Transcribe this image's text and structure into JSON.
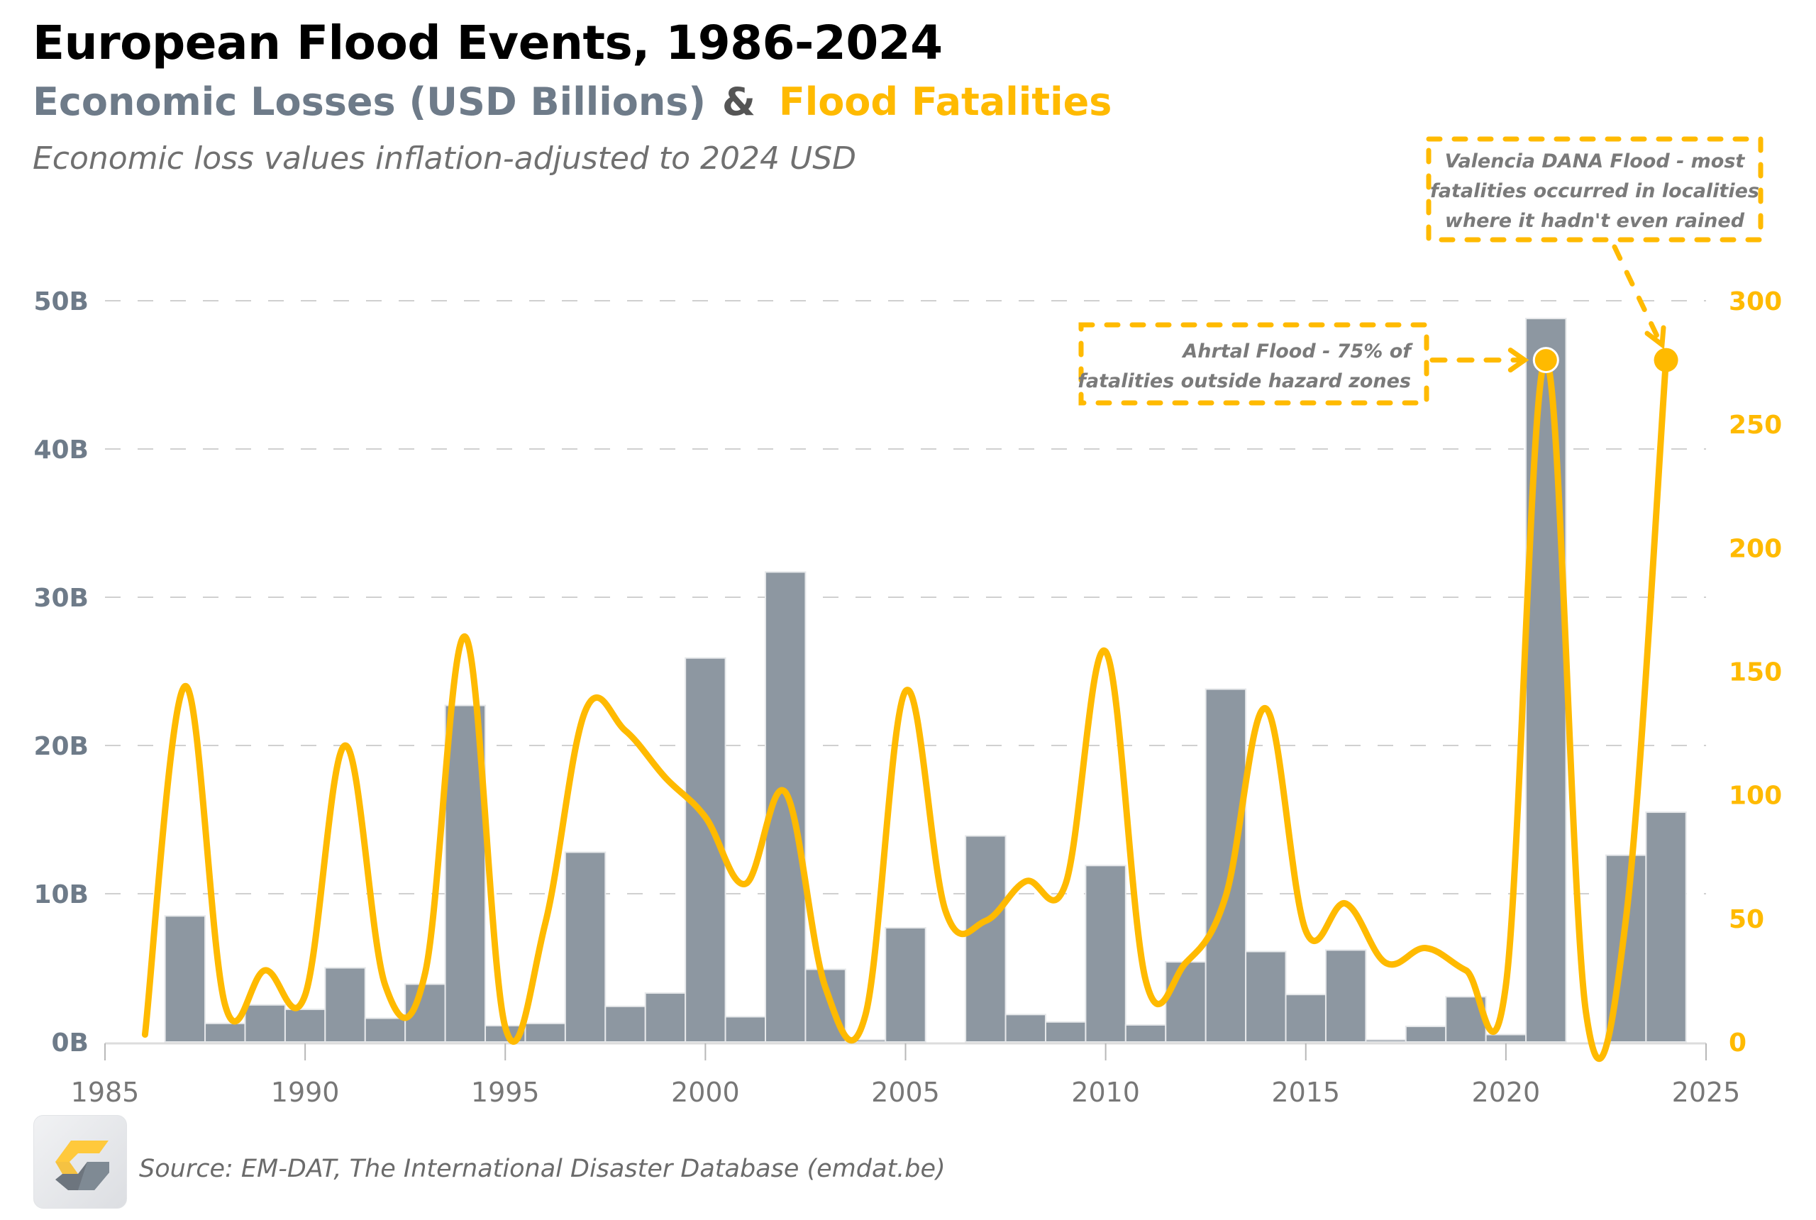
{
  "header": {
    "title": "European Flood Events, 1986-2024",
    "subtitle_losses": "Economic Losses (USD Billions)",
    "subtitle_amp": "&",
    "subtitle_fatalities": "Flood Fatalities",
    "note": "Economic loss values inflation-adjusted to 2024 USD"
  },
  "footer": {
    "source": "Source: EM-DAT, The International Disaster Database (emdat.be)",
    "logo_icon": "g-chevron-logo-icon"
  },
  "colors": {
    "bars": "#8d97a1",
    "bar_edge": "#e6e8ea",
    "line": "#ffba00",
    "left_axis_text": "#6e7b89",
    "right_axis_text": "#ffba00",
    "grid": "#d0d0d0",
    "annotation_text": "#7a7a7a"
  },
  "chart_data": {
    "type": "bar",
    "combo": "bar + line (dual axis)",
    "title": "European Flood Events, 1986-2024",
    "x": [
      1986,
      1987,
      1988,
      1989,
      1990,
      1991,
      1992,
      1993,
      1994,
      1995,
      1996,
      1997,
      1998,
      1999,
      2000,
      2001,
      2002,
      2003,
      2004,
      2005,
      2006,
      2007,
      2008,
      2009,
      2010,
      2011,
      2012,
      2013,
      2014,
      2015,
      2016,
      2017,
      2018,
      2019,
      2020,
      2021,
      2022,
      2023,
      2024
    ],
    "series": [
      {
        "name": "Economic Losses (USD Billions)",
        "type": "bar",
        "axis": "left",
        "values": [
          0,
          8.5,
          1.25,
          2.5,
          2.2,
          5.0,
          1.6,
          3.9,
          22.7,
          1.1,
          1.25,
          12.8,
          2.4,
          3.3,
          25.9,
          1.7,
          31.7,
          4.9,
          0.15,
          7.7,
          0,
          13.9,
          1.85,
          1.35,
          11.9,
          1.15,
          5.4,
          23.8,
          6.1,
          3.2,
          6.2,
          0.15,
          1.05,
          3.05,
          0.5,
          48.8,
          0,
          12.6,
          15.5
        ]
      },
      {
        "name": "Flood Fatalities",
        "type": "line",
        "axis": "right",
        "values": [
          3,
          144,
          15,
          29,
          19,
          120,
          23,
          28,
          164,
          6,
          48,
          134,
          126,
          107,
          91,
          64,
          101,
          22,
          11,
          142,
          53,
          49,
          65,
          64,
          158,
          25,
          32,
          59,
          135,
          45,
          56,
          32,
          38,
          29,
          23,
          276,
          12,
          50,
          276
        ]
      }
    ],
    "xlabel": "",
    "ylabel_left": "",
    "ylabel_right": "",
    "xlim": [
      1985,
      2025
    ],
    "xticks": [
      "1985",
      "1990",
      "1995",
      "2000",
      "2005",
      "2010",
      "2015",
      "2020",
      "2025"
    ],
    "xtick_values": [
      1985,
      1990,
      1995,
      2000,
      2005,
      2010,
      2015,
      2020,
      2025
    ],
    "ylim_left": [
      0,
      50
    ],
    "yticks_left": [
      "0B",
      "10B",
      "20B",
      "30B",
      "40B",
      "50B"
    ],
    "ytick_values_left": [
      0,
      10,
      20,
      30,
      40,
      50
    ],
    "ylim_right": [
      0,
      300
    ],
    "yticks_right": [
      "0",
      "50",
      "100",
      "150",
      "200",
      "250",
      "300"
    ],
    "ytick_values_right": [
      0,
      50,
      100,
      150,
      200,
      250,
      300
    ],
    "grid": "horizontal dashed",
    "annotations": [
      {
        "year": 2021,
        "fatalities": 276,
        "lines": [
          "Ahrtal Flood - 75% of",
          "fatalities outside hazard zones"
        ],
        "placement": "left"
      },
      {
        "year": 2024,
        "fatalities": 276,
        "lines": [
          "Valencia DANA Flood - most",
          "fatalities occurred in localities",
          "where it hadn't even rained"
        ],
        "placement": "top"
      }
    ]
  }
}
